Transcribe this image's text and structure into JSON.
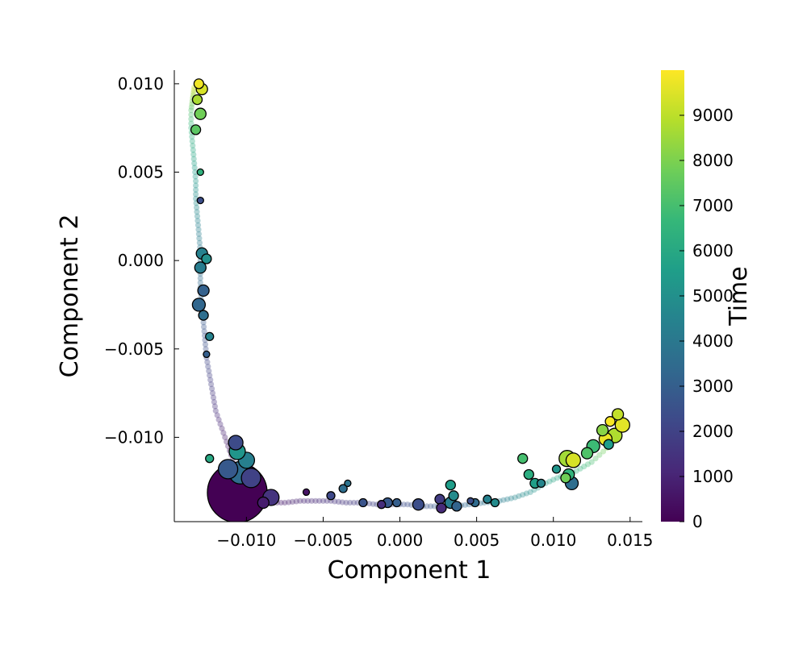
{
  "chart_data": {
    "type": "scatter",
    "title": "",
    "xlabel": "Component 1",
    "ylabel": "Component 2",
    "xlim": [
      -0.0147,
      0.0158
    ],
    "ylim": [
      -0.01477,
      0.01077
    ],
    "x_ticks": [
      -0.01,
      -0.005,
      0.0,
      0.005,
      0.01,
      0.015
    ],
    "x_tick_labels": [
      "−0.010",
      "−0.005",
      "0.000",
      "0.005",
      "0.010",
      "0.015"
    ],
    "y_ticks": [
      -0.01,
      -0.005,
      0.0,
      0.005,
      0.01
    ],
    "y_tick_labels": [
      "−0.010",
      "−0.005",
      "0.000",
      "0.005",
      "0.010"
    ],
    "grid": false,
    "colormap": "viridis",
    "colorbar": {
      "label": "Time",
      "min": 0,
      "max": 10000,
      "ticks": [
        0,
        1000,
        2000,
        3000,
        4000,
        5000,
        6000,
        7000,
        8000,
        9000
      ],
      "tick_labels": [
        "0",
        "1000",
        "2000",
        "3000",
        "4000",
        "5000",
        "6000",
        "7000",
        "8000",
        "9000"
      ]
    },
    "background_path": {
      "description": "faint trajectory points colored by time",
      "points": [
        [
          -0.0106,
          -0.0134,
          0
        ],
        [
          -0.0095,
          -0.0136,
          300
        ],
        [
          -0.0085,
          -0.0137,
          600
        ],
        [
          -0.0075,
          -0.0137,
          800
        ],
        [
          -0.0065,
          -0.0136,
          1000
        ],
        [
          -0.0055,
          -0.0136,
          1200
        ],
        [
          -0.0045,
          -0.0136,
          1400
        ],
        [
          -0.0035,
          -0.0137,
          1600
        ],
        [
          -0.0025,
          -0.0137,
          1800
        ],
        [
          -0.0015,
          -0.0138,
          2000
        ],
        [
          -0.0005,
          -0.0138,
          2200
        ],
        [
          0.0005,
          -0.0138,
          2400
        ],
        [
          0.0015,
          -0.0139,
          2600
        ],
        [
          0.0025,
          -0.0139,
          2800
        ],
        [
          0.0035,
          -0.0139,
          3000
        ],
        [
          0.0045,
          -0.0138,
          3400
        ],
        [
          0.0055,
          -0.0137,
          3800
        ],
        [
          0.0065,
          -0.0136,
          4200
        ],
        [
          0.0075,
          -0.0134,
          4600
        ],
        [
          0.0085,
          -0.0131,
          5000
        ],
        [
          0.0095,
          -0.0126,
          5600
        ],
        [
          0.0105,
          -0.0122,
          6000
        ],
        [
          0.0115,
          -0.0119,
          6400
        ],
        [
          0.0125,
          -0.0114,
          7000
        ],
        [
          0.0135,
          -0.0106,
          8000
        ],
        [
          0.0142,
          -0.0095,
          9000
        ],
        [
          -0.0106,
          -0.0125,
          200
        ],
        [
          -0.0108,
          -0.0115,
          400
        ],
        [
          -0.0112,
          -0.0105,
          700
        ],
        [
          -0.0116,
          -0.0095,
          1000
        ],
        [
          -0.012,
          -0.0085,
          1300
        ],
        [
          -0.0122,
          -0.0075,
          1600
        ],
        [
          -0.0124,
          -0.0065,
          1900
        ],
        [
          -0.0126,
          -0.0055,
          2200
        ],
        [
          -0.0127,
          -0.0045,
          2500
        ],
        [
          -0.0128,
          -0.0035,
          2800
        ],
        [
          -0.0129,
          -0.0025,
          3100
        ],
        [
          -0.013,
          -0.0015,
          3400
        ],
        [
          -0.013,
          -0.0005,
          3700
        ],
        [
          -0.013,
          0.0005,
          4000
        ],
        [
          -0.0131,
          0.0015,
          4300
        ],
        [
          -0.0132,
          0.0025,
          4600
        ],
        [
          -0.0133,
          0.0035,
          4900
        ],
        [
          -0.0133,
          0.0045,
          5300
        ],
        [
          -0.0134,
          0.0055,
          5700
        ],
        [
          -0.0135,
          0.0065,
          6100
        ],
        [
          -0.0136,
          0.0075,
          6500
        ],
        [
          -0.0136,
          0.0085,
          7200
        ],
        [
          -0.0135,
          0.0092,
          8200
        ],
        [
          -0.0134,
          0.0098,
          9200
        ]
      ]
    },
    "clusters": [
      {
        "x": -0.0106,
        "y": -0.01313,
        "t": 0,
        "r": 37
      },
      {
        "x": -0.0104,
        "y": -0.012,
        "t": 3500,
        "r": 14
      },
      {
        "x": -0.0112,
        "y": -0.0118,
        "t": 2800,
        "r": 12
      },
      {
        "x": -0.0097,
        "y": -0.0123,
        "t": 2000,
        "r": 12
      },
      {
        "x": -0.01,
        "y": -0.0113,
        "t": 4300,
        "r": 10
      },
      {
        "x": -0.0106,
        "y": -0.0108,
        "t": 5200,
        "r": 10
      },
      {
        "x": -0.0107,
        "y": -0.0103,
        "t": 2300,
        "r": 9
      },
      {
        "x": -0.0084,
        "y": -0.0134,
        "t": 1500,
        "r": 10
      },
      {
        "x": -0.0089,
        "y": -0.0137,
        "t": 800,
        "r": 7
      },
      {
        "x": -0.0061,
        "y": -0.0131,
        "t": 500,
        "r": 4
      },
      {
        "x": -0.0045,
        "y": -0.0133,
        "t": 2200,
        "r": 5
      },
      {
        "x": -0.0037,
        "y": -0.0129,
        "t": 3600,
        "r": 5
      },
      {
        "x": -0.0034,
        "y": -0.0126,
        "t": 3800,
        "r": 4
      },
      {
        "x": -0.0024,
        "y": -0.0137,
        "t": 2600,
        "r": 5
      },
      {
        "x": -0.0012,
        "y": -0.0138,
        "t": 1300,
        "r": 5
      },
      {
        "x": -0.0008,
        "y": -0.0137,
        "t": 2800,
        "r": 6
      },
      {
        "x": -0.0002,
        "y": -0.0137,
        "t": 3000,
        "r": 5
      },
      {
        "x": 0.0012,
        "y": -0.0138,
        "t": 2400,
        "r": 7
      },
      {
        "x": 0.0026,
        "y": -0.0135,
        "t": 1800,
        "r": 6
      },
      {
        "x": 0.0027,
        "y": -0.014,
        "t": 1200,
        "r": 6
      },
      {
        "x": 0.0035,
        "y": -0.0133,
        "t": 4800,
        "r": 6
      },
      {
        "x": 0.0033,
        "y": -0.0137,
        "t": 4200,
        "r": 7
      },
      {
        "x": 0.0037,
        "y": -0.0139,
        "t": 3200,
        "r": 6
      },
      {
        "x": 0.0033,
        "y": -0.0127,
        "t": 5500,
        "r": 6
      },
      {
        "x": 0.0046,
        "y": -0.0136,
        "t": 2400,
        "r": 4
      },
      {
        "x": 0.0049,
        "y": -0.0137,
        "t": 3500,
        "r": 5
      },
      {
        "x": 0.0057,
        "y": -0.0135,
        "t": 4400,
        "r": 5
      },
      {
        "x": 0.0062,
        "y": -0.0137,
        "t": 4800,
        "r": 5
      },
      {
        "x": 0.008,
        "y": -0.0112,
        "t": 7000,
        "r": 6
      },
      {
        "x": 0.0084,
        "y": -0.0121,
        "t": 6200,
        "r": 6
      },
      {
        "x": 0.0088,
        "y": -0.0126,
        "t": 5600,
        "r": 6
      },
      {
        "x": 0.0092,
        "y": -0.0126,
        "t": 4600,
        "r": 5
      },
      {
        "x": 0.0102,
        "y": -0.0118,
        "t": 5200,
        "r": 5
      },
      {
        "x": 0.0109,
        "y": -0.0112,
        "t": 8600,
        "r": 10
      },
      {
        "x": 0.0113,
        "y": -0.0113,
        "t": 9400,
        "r": 9
      },
      {
        "x": 0.011,
        "y": -0.0121,
        "t": 6500,
        "r": 7
      },
      {
        "x": 0.0112,
        "y": -0.0126,
        "t": 3600,
        "r": 8
      },
      {
        "x": 0.0108,
        "y": -0.0123,
        "t": 7800,
        "r": 6
      },
      {
        "x": 0.0122,
        "y": -0.0109,
        "t": 7200,
        "r": 7
      },
      {
        "x": 0.0126,
        "y": -0.0105,
        "t": 6800,
        "r": 8
      },
      {
        "x": 0.0132,
        "y": -0.0096,
        "t": 8200,
        "r": 7
      },
      {
        "x": 0.0134,
        "y": -0.0101,
        "t": 9700,
        "r": 8
      },
      {
        "x": 0.014,
        "y": -0.0099,
        "t": 8800,
        "r": 9
      },
      {
        "x": 0.0145,
        "y": -0.0093,
        "t": 9600,
        "r": 9
      },
      {
        "x": 0.0142,
        "y": -0.0087,
        "t": 9100,
        "r": 7
      },
      {
        "x": 0.0137,
        "y": -0.0091,
        "t": 9900,
        "r": 6
      },
      {
        "x": 0.0136,
        "y": -0.0104,
        "t": 5500,
        "r": 6
      },
      {
        "x": -0.0129,
        "y": 0.0004,
        "t": 4400,
        "r": 7
      },
      {
        "x": -0.0126,
        "y": 0.0001,
        "t": 5000,
        "r": 6
      },
      {
        "x": -0.013,
        "y": -0.0004,
        "t": 4200,
        "r": 7
      },
      {
        "x": -0.0128,
        "y": -0.0017,
        "t": 3100,
        "r": 7
      },
      {
        "x": -0.0131,
        "y": -0.0025,
        "t": 3300,
        "r": 8
      },
      {
        "x": -0.0128,
        "y": -0.0031,
        "t": 3600,
        "r": 6
      },
      {
        "x": -0.0124,
        "y": -0.0043,
        "t": 4500,
        "r": 5
      },
      {
        "x": -0.0126,
        "y": -0.0053,
        "t": 3000,
        "r": 4
      },
      {
        "x": -0.013,
        "y": 0.0034,
        "t": 2400,
        "r": 4
      },
      {
        "x": -0.013,
        "y": 0.005,
        "t": 6400,
        "r": 4
      },
      {
        "x": -0.0133,
        "y": 0.0074,
        "t": 7400,
        "r": 6
      },
      {
        "x": -0.013,
        "y": 0.0083,
        "t": 7800,
        "r": 7
      },
      {
        "x": -0.0132,
        "y": 0.0091,
        "t": 8700,
        "r": 6
      },
      {
        "x": -0.0129,
        "y": 0.0097,
        "t": 9400,
        "r": 7
      },
      {
        "x": -0.0131,
        "y": 0.01,
        "t": 9800,
        "r": 6
      },
      {
        "x": -0.0124,
        "y": -0.0112,
        "t": 6000,
        "r": 5
      }
    ],
    "colorbar_stops": [
      "#440154",
      "#482878",
      "#3e4989",
      "#31688e",
      "#26828e",
      "#1f9e89",
      "#35b779",
      "#6ece58",
      "#b5de2b",
      "#fde725"
    ]
  }
}
